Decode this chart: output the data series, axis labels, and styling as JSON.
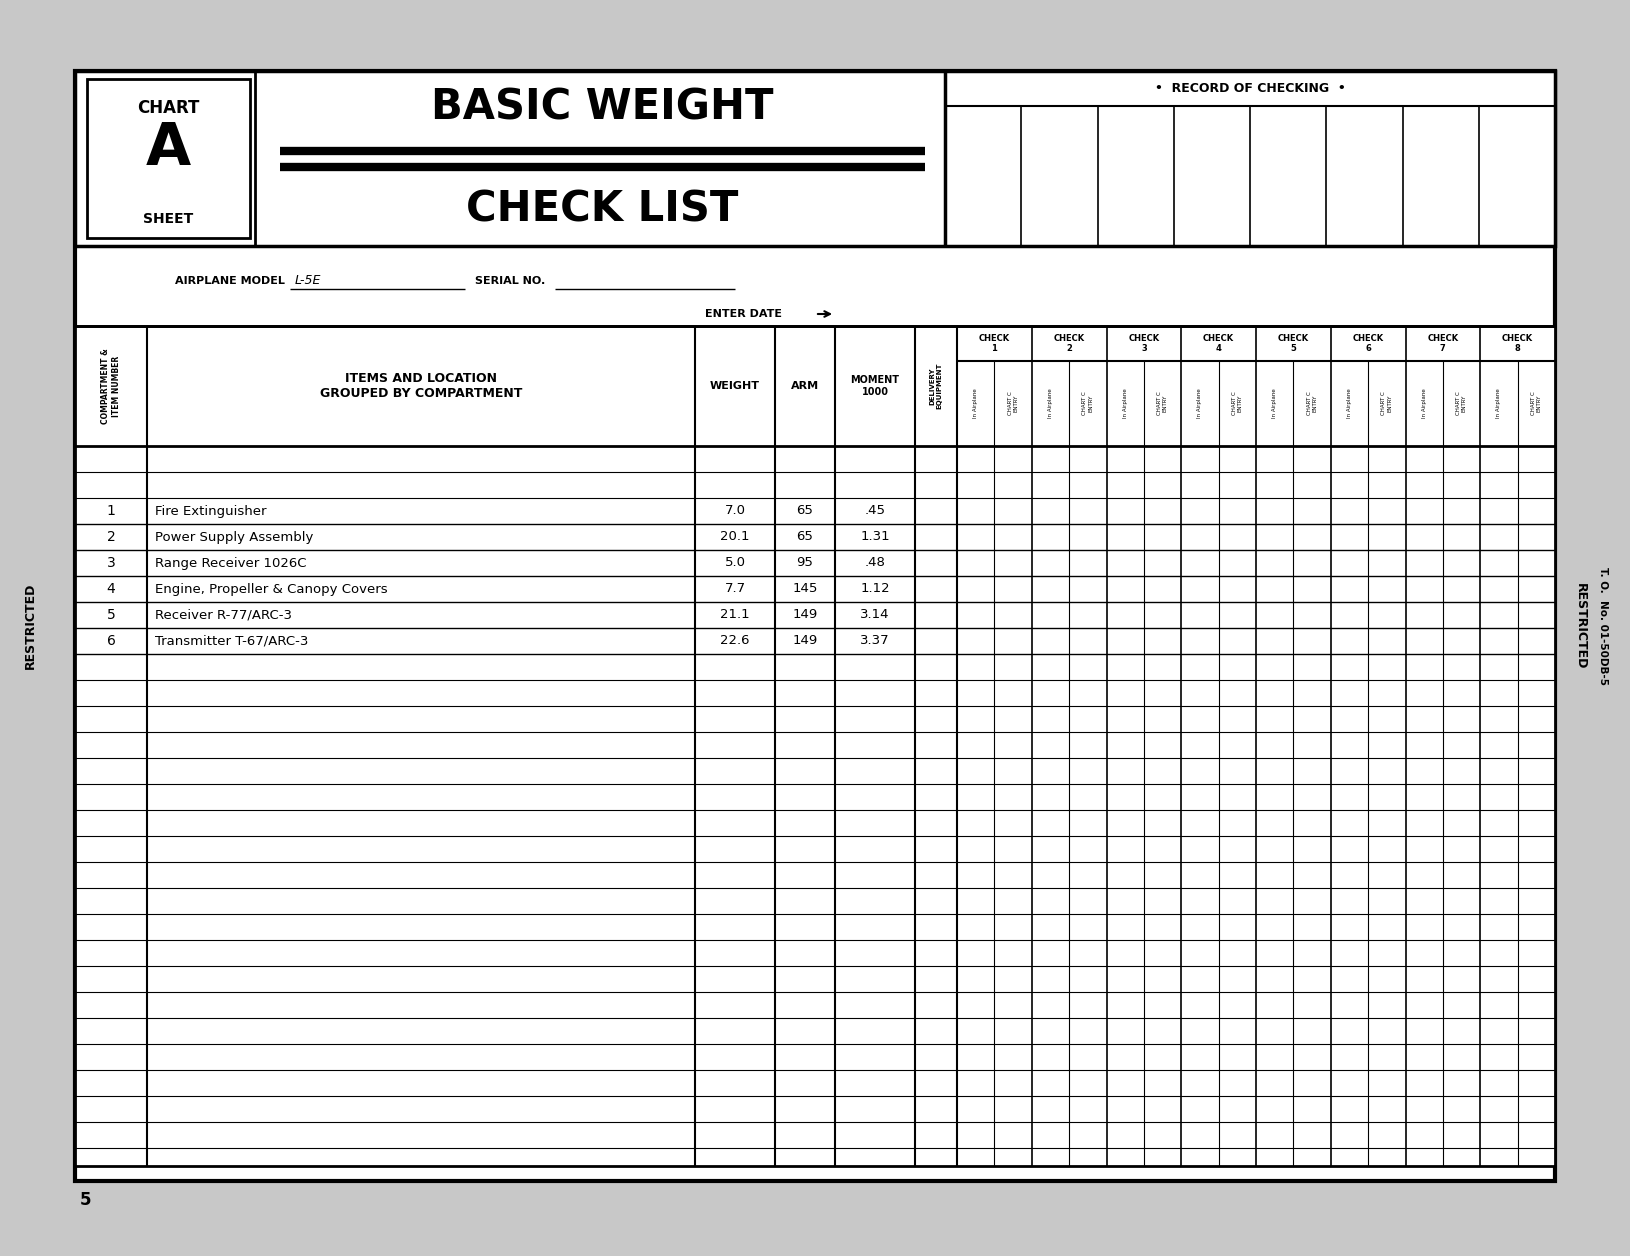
{
  "page_bg": "#c8c8c8",
  "doc_bg": "#ffffff",
  "airplane_model": "L-5E",
  "record_of_checking": "•  RECORD OF CHECKING  •",
  "items": [
    {
      "num": "1",
      "name": "Fire Extinguisher",
      "weight": "7.0",
      "arm": "65",
      "moment": ".45"
    },
    {
      "num": "2",
      "name": "Power Supply Assembly",
      "weight": "20.1",
      "arm": "65",
      "moment": "1.31"
    },
    {
      "num": "3",
      "name": "Range Receiver 1026C",
      "weight": "5.0",
      "arm": "95",
      "moment": ".48"
    },
    {
      "num": "4",
      "name": "Engine, Propeller & Canopy Covers",
      "weight": "7.7",
      "arm": "145",
      "moment": "1.12"
    },
    {
      "num": "5",
      "name": "Receiver R-77/ARC-3",
      "weight": "21.1",
      "arm": "149",
      "moment": "3.14"
    },
    {
      "num": "6",
      "name": "Transmitter T-67/ARC-3",
      "weight": "22.6",
      "arm": "149",
      "moment": "3.37"
    }
  ],
  "check_labels": [
    "CHECK\n1",
    "CHECK\n2",
    "CHECK\n3",
    "CHECK\n4",
    "CHECK\n5",
    "CHECK\n6",
    "CHECK\n7",
    "CHECK\n8"
  ],
  "to_no": "T. O.  No. 01-50DB-5",
  "page_num": "5"
}
